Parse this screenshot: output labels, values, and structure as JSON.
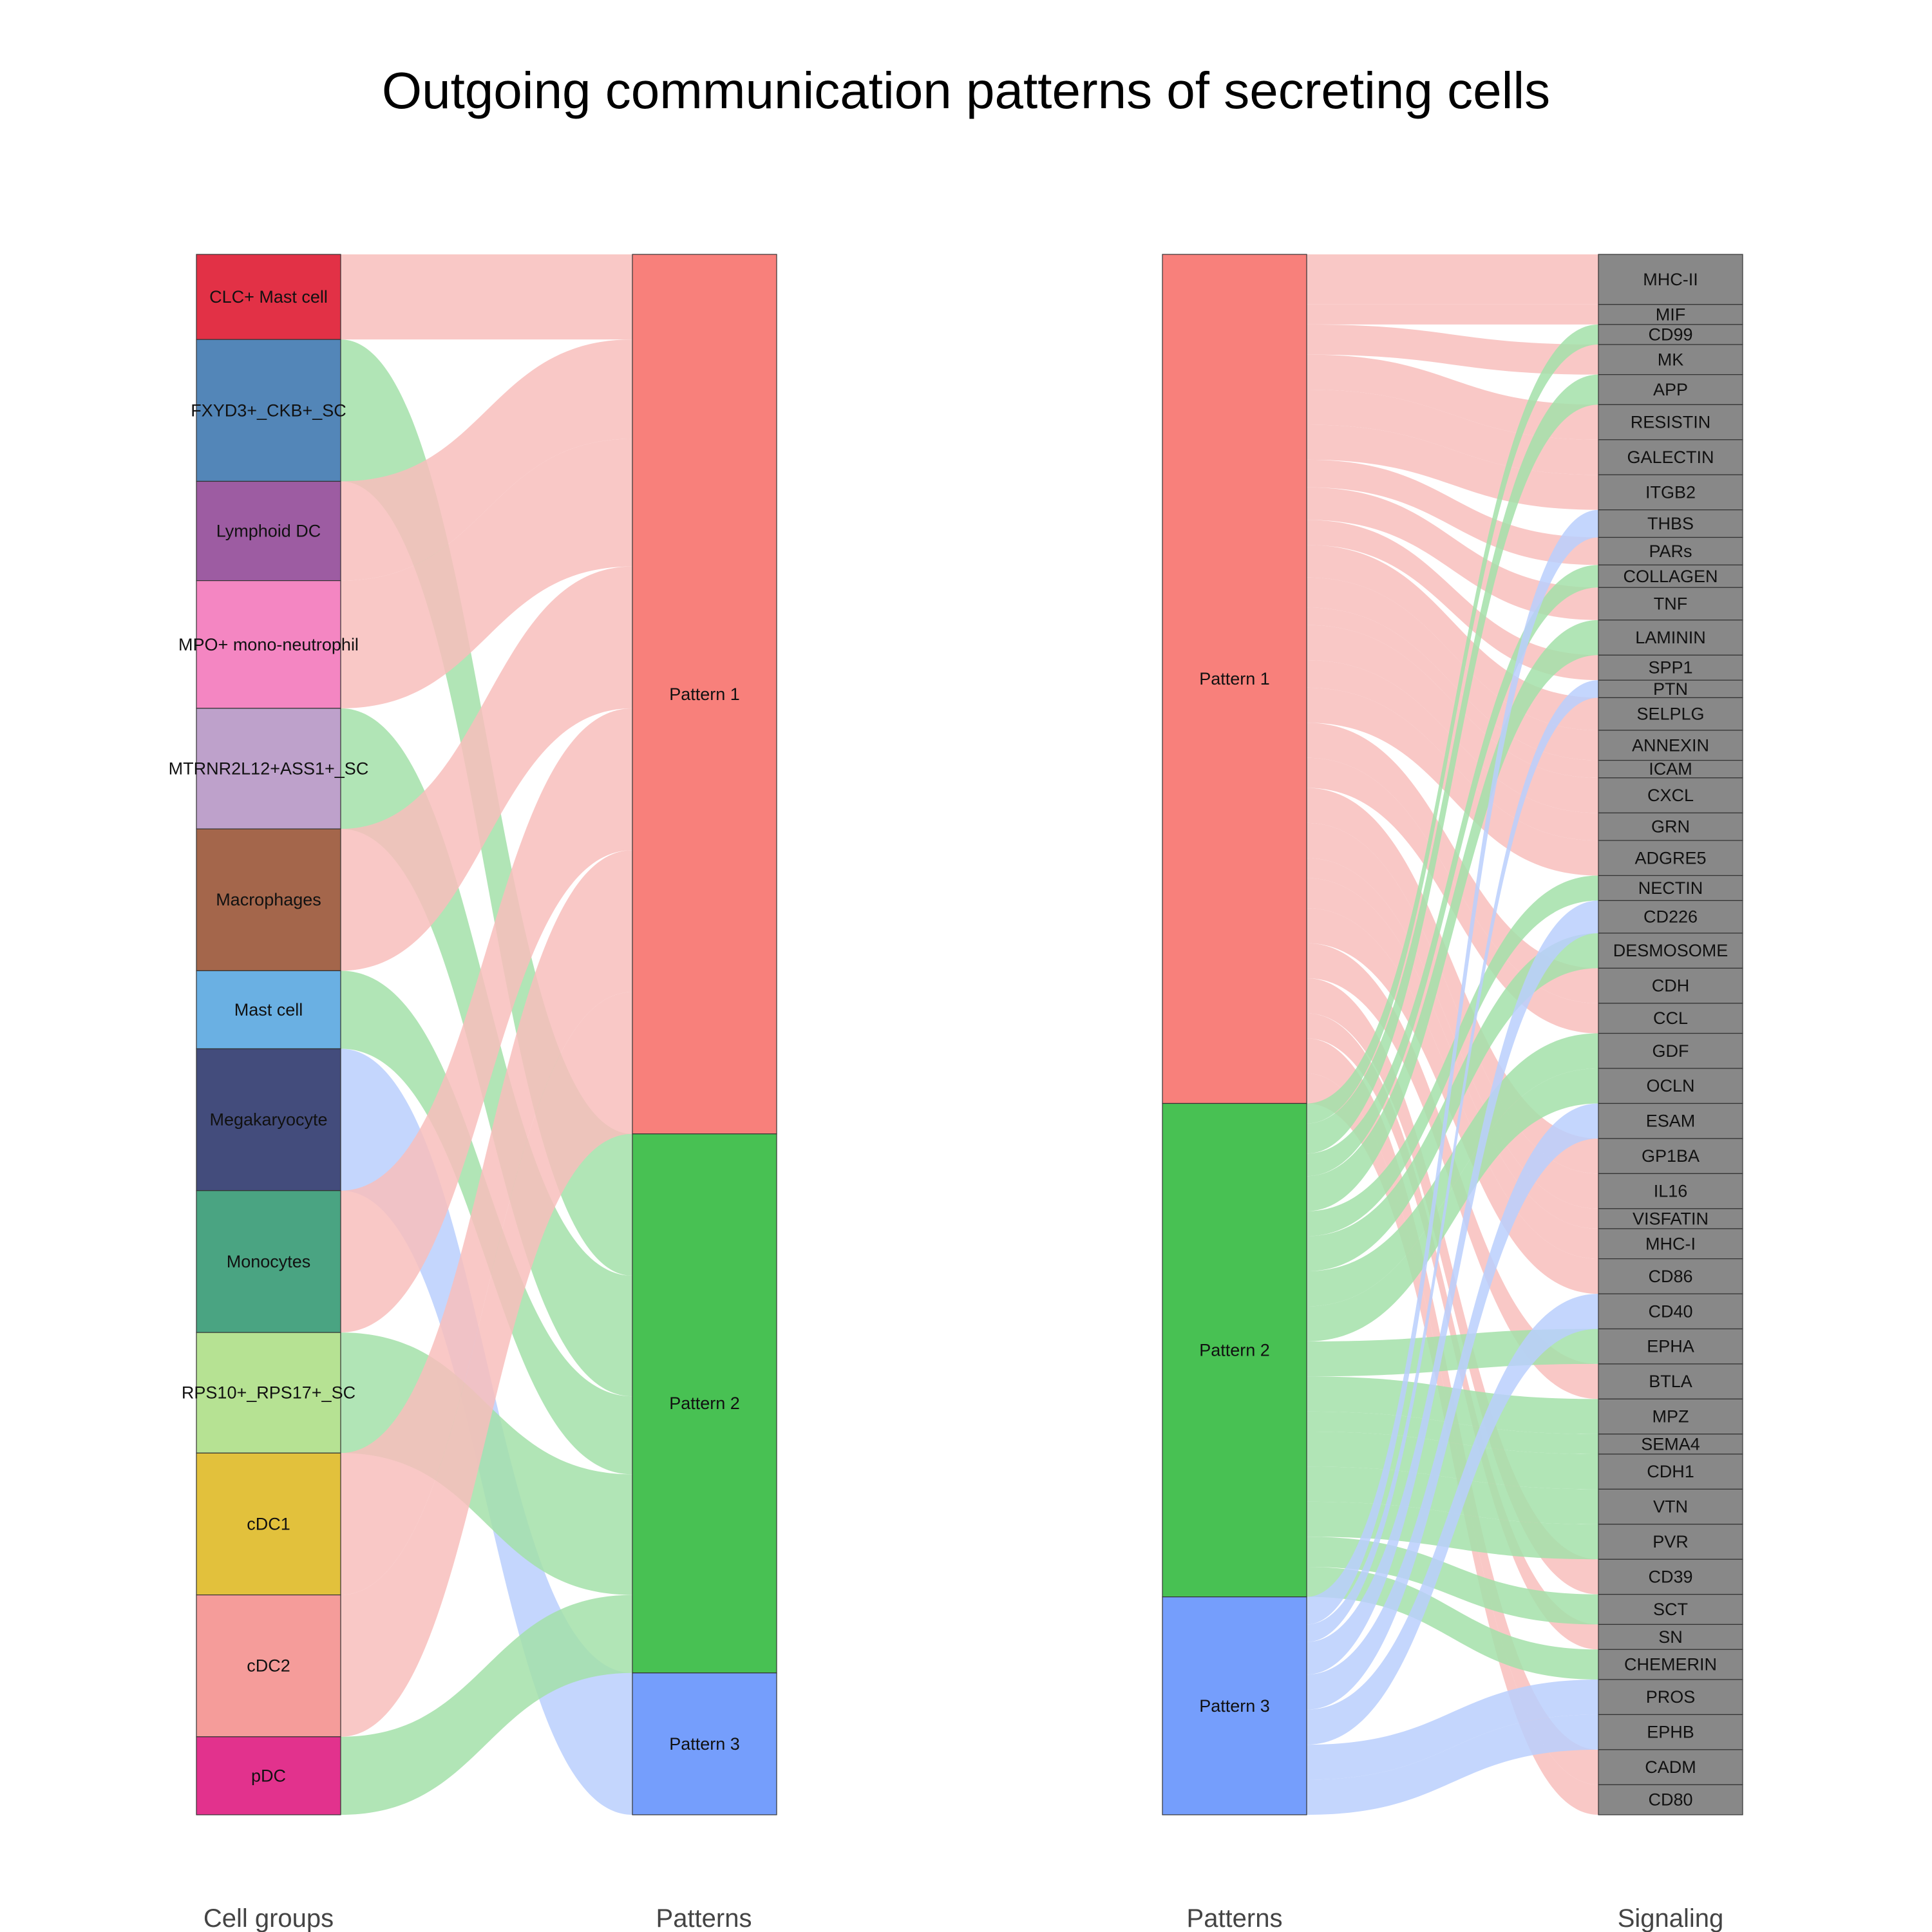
{
  "chart_data": {
    "type": "alluvial",
    "title": "Outgoing communication patterns of secreting cells",
    "colors": {
      "pattern": {
        "Pattern 1": "#F8807B",
        "Pattern 2": "#48C153",
        "Pattern 3": "#759EFC"
      },
      "flow": {
        "Pattern 1": "#F8BEBC",
        "Pattern 2": "#A3E1A9",
        "Pattern 3": "#BACFFD"
      },
      "signaling": "#888888"
    },
    "panels": [
      {
        "name": "cells-to-patterns",
        "left_title": "Cell groups",
        "right_title": "Patterns",
        "left_nodes": [
          {
            "label": "CLC+ Mast cell",
            "color": "#E23146"
          },
          {
            "label": "FXYD3+_CKB+_SC",
            "color": "#5386B8"
          },
          {
            "label": "Lymphoid DC",
            "color": "#9D5CA2"
          },
          {
            "label": "MPO+ mono-neutrophil",
            "color": "#F486C2"
          },
          {
            "label": "MTRNR2L12+ASS1+_SC",
            "color": "#BEA1CB"
          },
          {
            "label": "Macrophages",
            "color": "#A4664B"
          },
          {
            "label": "Mast cell",
            "color": "#6AB0E3"
          },
          {
            "label": "Megakaryocyte",
            "color": "#434C7C"
          },
          {
            "label": "Monocytes",
            "color": "#4AA482"
          },
          {
            "label": "RPS10+_RPS17+_SC",
            "color": "#B6E293"
          },
          {
            "label": "cDC1",
            "color": "#E2C13C"
          },
          {
            "label": "cDC2",
            "color": "#F59C9A"
          },
          {
            "label": "pDC",
            "color": "#E2328D"
          }
        ],
        "right_nodes": [
          {
            "label": "Pattern 1"
          },
          {
            "label": "Pattern 2"
          },
          {
            "label": "Pattern 3"
          }
        ],
        "flows": [
          {
            "source": "CLC+ Mast cell",
            "target": "Pattern 1",
            "value": 0.6
          },
          {
            "source": "FXYD3+_CKB+_SC",
            "target": "Pattern 2",
            "value": 1
          },
          {
            "source": "Lymphoid DC",
            "target": "Pattern 1",
            "value": 0.7
          },
          {
            "source": "MPO+ mono-neutrophil",
            "target": "Pattern 1",
            "value": 0.9
          },
          {
            "source": "MTRNR2L12+ASS1+_SC",
            "target": "Pattern 2",
            "value": 0.85
          },
          {
            "source": "Macrophages",
            "target": "Pattern 1",
            "value": 1
          },
          {
            "source": "Mast cell",
            "target": "Pattern 2",
            "value": 0.55
          },
          {
            "source": "Megakaryocyte",
            "target": "Pattern 3",
            "value": 1
          },
          {
            "source": "Monocytes",
            "target": "Pattern 1",
            "value": 1
          },
          {
            "source": "RPS10+_RPS17+_SC",
            "target": "Pattern 2",
            "value": 0.85
          },
          {
            "source": "cDC1",
            "target": "Pattern 1",
            "value": 1
          },
          {
            "source": "cDC2",
            "target": "Pattern 1",
            "value": 1
          },
          {
            "source": "pDC",
            "target": "Pattern 2",
            "value": 0.55
          }
        ]
      },
      {
        "name": "patterns-to-signaling",
        "left_title": "Patterns",
        "right_title": "Signaling",
        "left_nodes": [
          {
            "label": "Pattern 1"
          },
          {
            "label": "Pattern 2"
          },
          {
            "label": "Pattern 3"
          }
        ],
        "right_nodes": [
          {
            "label": "MHC-II"
          },
          {
            "label": "MIF"
          },
          {
            "label": "CD99"
          },
          {
            "label": "MK"
          },
          {
            "label": "APP"
          },
          {
            "label": "RESISTIN"
          },
          {
            "label": "GALECTIN"
          },
          {
            "label": "ITGB2"
          },
          {
            "label": "THBS"
          },
          {
            "label": "PARs"
          },
          {
            "label": "COLLAGEN"
          },
          {
            "label": "TNF"
          },
          {
            "label": "LAMININ"
          },
          {
            "label": "SPP1"
          },
          {
            "label": "PTN"
          },
          {
            "label": "SELPLG"
          },
          {
            "label": "ANNEXIN"
          },
          {
            "label": "ICAM"
          },
          {
            "label": "CXCL"
          },
          {
            "label": "GRN"
          },
          {
            "label": "ADGRE5"
          },
          {
            "label": "NECTIN"
          },
          {
            "label": "CD226"
          },
          {
            "label": "DESMOSOME"
          },
          {
            "label": "CDH"
          },
          {
            "label": "CCL"
          },
          {
            "label": "GDF"
          },
          {
            "label": "OCLN"
          },
          {
            "label": "ESAM"
          },
          {
            "label": "GP1BA"
          },
          {
            "label": "IL16"
          },
          {
            "label": "VISFATIN"
          },
          {
            "label": "MHC-I"
          },
          {
            "label": "CD86"
          },
          {
            "label": "CD40"
          },
          {
            "label": "EPHA"
          },
          {
            "label": "BTLA"
          },
          {
            "label": "MPZ"
          },
          {
            "label": "SEMA4"
          },
          {
            "label": "CDH1"
          },
          {
            "label": "VTN"
          },
          {
            "label": "PVR"
          },
          {
            "label": "CD39"
          },
          {
            "label": "SCT"
          },
          {
            "label": "SN"
          },
          {
            "label": "CHEMERIN"
          },
          {
            "label": "PROS"
          },
          {
            "label": "EPHB"
          },
          {
            "label": "CADM"
          },
          {
            "label": "CD80"
          }
        ],
        "flows": [
          {
            "source": "Pattern 1",
            "target": "MHC-II",
            "value": 1
          },
          {
            "source": "Pattern 1",
            "target": "MIF",
            "value": 0.4
          },
          {
            "source": "Pattern 2",
            "target": "CD99",
            "value": 0.4
          },
          {
            "source": "Pattern 1",
            "target": "MK",
            "value": 0.6
          },
          {
            "source": "Pattern 2",
            "target": "APP",
            "value": 0.6
          },
          {
            "source": "Pattern 1",
            "target": "RESISTIN",
            "value": 0.7
          },
          {
            "source": "Pattern 1",
            "target": "GALECTIN",
            "value": 0.7
          },
          {
            "source": "Pattern 1",
            "target": "ITGB2",
            "value": 0.7
          },
          {
            "source": "Pattern 3",
            "target": "THBS",
            "value": 0.55
          },
          {
            "source": "Pattern 1",
            "target": "PARs",
            "value": 0.55
          },
          {
            "source": "Pattern 2",
            "target": "COLLAGEN",
            "value": 0.45
          },
          {
            "source": "Pattern 1",
            "target": "TNF",
            "value": 0.65
          },
          {
            "source": "Pattern 2",
            "target": "LAMININ",
            "value": 0.7
          },
          {
            "source": "Pattern 1",
            "target": "SPP1",
            "value": 0.5
          },
          {
            "source": "Pattern 3",
            "target": "PTN",
            "value": 0.35
          },
          {
            "source": "Pattern 1",
            "target": "SELPLG",
            "value": 0.65
          },
          {
            "source": "Pattern 1",
            "target": "ANNEXIN",
            "value": 0.6
          },
          {
            "source": "Pattern 1",
            "target": "ICAM",
            "value": 0.35
          },
          {
            "source": "Pattern 1",
            "target": "CXCL",
            "value": 0.7
          },
          {
            "source": "Pattern 1",
            "target": "GRN",
            "value": 0.55
          },
          {
            "source": "Pattern 1",
            "target": "ADGRE5",
            "value": 0.7
          },
          {
            "source": "Pattern 2",
            "target": "NECTIN",
            "value": 0.5
          },
          {
            "source": "Pattern 3",
            "target": "CD226",
            "value": 0.65
          },
          {
            "source": "Pattern 2",
            "target": "DESMOSOME",
            "value": 0.7
          },
          {
            "source": "Pattern 1",
            "target": "CDH",
            "value": 0.7
          },
          {
            "source": "Pattern 1",
            "target": "CCL",
            "value": 0.6
          },
          {
            "source": "Pattern 2",
            "target": "GDF",
            "value": 0.7
          },
          {
            "source": "Pattern 2",
            "target": "OCLN",
            "value": 0.7
          },
          {
            "source": "Pattern 3",
            "target": "ESAM",
            "value": 0.7
          },
          {
            "source": "Pattern 1",
            "target": "GP1BA",
            "value": 0.7
          },
          {
            "source": "Pattern 1",
            "target": "IL16",
            "value": 0.7
          },
          {
            "source": "Pattern 1",
            "target": "VISFATIN",
            "value": 0.4
          },
          {
            "source": "Pattern 1",
            "target": "MHC-I",
            "value": 0.6
          },
          {
            "source": "Pattern 1",
            "target": "CD86",
            "value": 0.7
          },
          {
            "source": "Pattern 3",
            "target": "CD40",
            "value": 0.7
          },
          {
            "source": "Pattern 2",
            "target": "EPHA",
            "value": 0.7
          },
          {
            "source": "Pattern 1",
            "target": "BTLA",
            "value": 0.7
          },
          {
            "source": "Pattern 2",
            "target": "MPZ",
            "value": 0.7
          },
          {
            "source": "Pattern 2",
            "target": "SEMA4",
            "value": 0.4
          },
          {
            "source": "Pattern 2",
            "target": "CDH1",
            "value": 0.7
          },
          {
            "source": "Pattern 2",
            "target": "VTN",
            "value": 0.7
          },
          {
            "source": "Pattern 2",
            "target": "PVR",
            "value": 0.7
          },
          {
            "source": "Pattern 1",
            "target": "CD39",
            "value": 0.7
          },
          {
            "source": "Pattern 2",
            "target": "SCT",
            "value": 0.6
          },
          {
            "source": "Pattern 1",
            "target": "SN",
            "value": 0.5
          },
          {
            "source": "Pattern 2",
            "target": "CHEMERIN",
            "value": 0.6
          },
          {
            "source": "Pattern 3",
            "target": "PROS",
            "value": 0.7
          },
          {
            "source": "Pattern 3",
            "target": "EPHB",
            "value": 0.7
          },
          {
            "source": "Pattern 1",
            "target": "CADM",
            "value": 0.7
          },
          {
            "source": "Pattern 1",
            "target": "CD80",
            "value": 0.6
          }
        ]
      }
    ]
  }
}
